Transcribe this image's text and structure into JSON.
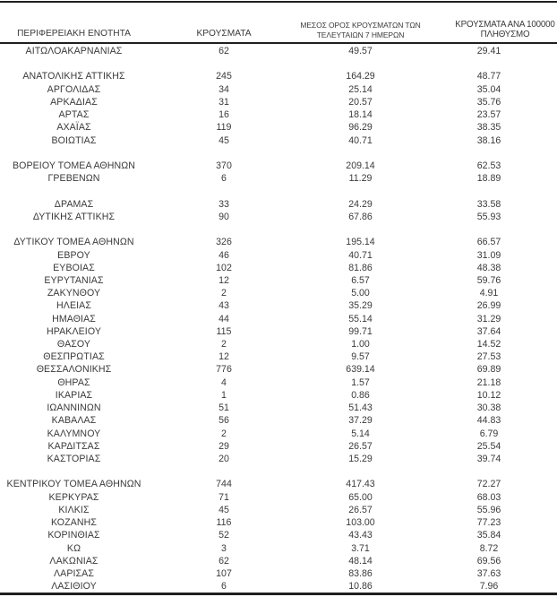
{
  "table": {
    "header": {
      "col1": "ΠΕΡΙΦΕΡΕΙΑΚΗ ΕΝΟΤΗΤΑ",
      "col2": "ΚΡΟΥΣΜΑΤΑ",
      "col3_line1": "ΜΕΣΟΣ ΟΡΟΣ ΚΡΟΥΣΜΑΤΩΝ ΤΩΝ",
      "col3_line2": "ΤΕΛΕΥΤΑΙΩΝ 7 ΗΜΕΡΩΝ",
      "col4_line1": "ΚΡΟΥΣΜΑΤΑ ΑΝΑ 100000",
      "col4_line2": "ΠΛΗΘΥΣΜΟ"
    },
    "rows": [
      {
        "region": "ΑΙΤΩΛΟΑΚΑΡΝΑΝΙΑΣ",
        "cases": "62",
        "avg_7day": "49.57",
        "per_100k": "29.41"
      },
      null,
      {
        "region": "ΑΝΑΤΟΛΙΚΗΣ ΑΤΤΙΚΗΣ",
        "cases": "245",
        "avg_7day": "164.29",
        "per_100k": "48.77"
      },
      {
        "region": "ΑΡΓΟΛΙΔΑΣ",
        "cases": "34",
        "avg_7day": "25.14",
        "per_100k": "35.04"
      },
      {
        "region": "ΑΡΚΑΔΙΑΣ",
        "cases": "31",
        "avg_7day": "20.57",
        "per_100k": "35.76"
      },
      {
        "region": "ΑΡΤΑΣ",
        "cases": "16",
        "avg_7day": "18.14",
        "per_100k": "23.57"
      },
      {
        "region": "ΑΧΑΪΑΣ",
        "cases": "119",
        "avg_7day": "96.29",
        "per_100k": "38.35"
      },
      {
        "region": "ΒΟΙΩΤΙΑΣ",
        "cases": "45",
        "avg_7day": "40.71",
        "per_100k": "38.16"
      },
      null,
      {
        "region": "ΒΟΡΕΙΟΥ ΤΟΜΕΑ ΑΘΗΝΩΝ",
        "cases": "370",
        "avg_7day": "209.14",
        "per_100k": "62.53"
      },
      {
        "region": "ΓΡΕΒΕΝΩΝ",
        "cases": "6",
        "avg_7day": "11.29",
        "per_100k": "18.89"
      },
      null,
      {
        "region": "ΔΡΑΜΑΣ",
        "cases": "33",
        "avg_7day": "24.29",
        "per_100k": "33.58"
      },
      {
        "region": "ΔΥΤΙΚΗΣ ΑΤΤΙΚΗΣ",
        "cases": "90",
        "avg_7day": "67.86",
        "per_100k": "55.93"
      },
      null,
      {
        "region": "ΔΥΤΙΚΟΥ ΤΟΜΕΑ ΑΘΗΝΩΝ",
        "cases": "326",
        "avg_7day": "195.14",
        "per_100k": "66.57"
      },
      {
        "region": "ΕΒΡΟΥ",
        "cases": "46",
        "avg_7day": "40.71",
        "per_100k": "31.09"
      },
      {
        "region": "ΕΥΒΟΙΑΣ",
        "cases": "102",
        "avg_7day": "81.86",
        "per_100k": "48.38"
      },
      {
        "region": "ΕΥΡΥΤΑΝΙΑΣ",
        "cases": "12",
        "avg_7day": "6.57",
        "per_100k": "59.76"
      },
      {
        "region": "ΖΑΚΥΝΘΟΥ",
        "cases": "2",
        "avg_7day": "5.00",
        "per_100k": "4.91"
      },
      {
        "region": "ΗΛΕΙΑΣ",
        "cases": "43",
        "avg_7day": "35.29",
        "per_100k": "26.99"
      },
      {
        "region": "ΗΜΑΘΙΑΣ",
        "cases": "44",
        "avg_7day": "55.14",
        "per_100k": "31.29"
      },
      {
        "region": "ΗΡΑΚΛΕΙΟΥ",
        "cases": "115",
        "avg_7day": "99.71",
        "per_100k": "37.64"
      },
      {
        "region": "ΘΑΣΟΥ",
        "cases": "2",
        "avg_7day": "1.00",
        "per_100k": "14.52"
      },
      {
        "region": "ΘΕΣΠΡΩΤΙΑΣ",
        "cases": "12",
        "avg_7day": "9.57",
        "per_100k": "27.53"
      },
      {
        "region": "ΘΕΣΣΑΛΟΝΙΚΗΣ",
        "cases": "776",
        "avg_7day": "639.14",
        "per_100k": "69.89"
      },
      {
        "region": "ΘΗΡΑΣ",
        "cases": "4",
        "avg_7day": "1.57",
        "per_100k": "21.18"
      },
      {
        "region": "ΙΚΑΡΙΑΣ",
        "cases": "1",
        "avg_7day": "0.86",
        "per_100k": "10.12"
      },
      {
        "region": "ΙΩΑΝΝΙΝΩΝ",
        "cases": "51",
        "avg_7day": "51.43",
        "per_100k": "30.38"
      },
      {
        "region": "ΚΑΒΑΛΑΣ",
        "cases": "56",
        "avg_7day": "37.29",
        "per_100k": "44.83"
      },
      {
        "region": "ΚΑΛΥΜΝΟΥ",
        "cases": "2",
        "avg_7day": "5.14",
        "per_100k": "6.79"
      },
      {
        "region": "ΚΑΡΔΙΤΣΑΣ",
        "cases": "29",
        "avg_7day": "26.57",
        "per_100k": "25.54"
      },
      {
        "region": "ΚΑΣΤΟΡΙΑΣ",
        "cases": "20",
        "avg_7day": "15.29",
        "per_100k": "39.74"
      },
      null,
      {
        "region": "ΚΕΝΤΡΙΚΟΥ ΤΟΜΕΑ ΑΘΗΝΩΝ",
        "cases": "744",
        "avg_7day": "417.43",
        "per_100k": "72.27"
      },
      {
        "region": "ΚΕΡΚΥΡΑΣ",
        "cases": "71",
        "avg_7day": "65.00",
        "per_100k": "68.03"
      },
      {
        "region": "ΚΙΛΚΙΣ",
        "cases": "45",
        "avg_7day": "26.57",
        "per_100k": "55.96"
      },
      {
        "region": "ΚΟΖΑΝΗΣ",
        "cases": "116",
        "avg_7day": "103.00",
        "per_100k": "77.23"
      },
      {
        "region": "ΚΟΡΙΝΘΙΑΣ",
        "cases": "52",
        "avg_7day": "43.43",
        "per_100k": "35.84"
      },
      {
        "region": "ΚΩ",
        "cases": "3",
        "avg_7day": "3.71",
        "per_100k": "8.72"
      },
      {
        "region": "ΛΑΚΩΝΙΑΣ",
        "cases": "62",
        "avg_7day": "48.14",
        "per_100k": "69.56"
      },
      {
        "region": "ΛΑΡΙΣΑΣ",
        "cases": "107",
        "avg_7day": "83.86",
        "per_100k": "37.63"
      },
      {
        "region": "ΛΑΣΙΘΙΟΥ",
        "cases": "6",
        "avg_7day": "10.86",
        "per_100k": "7.96"
      }
    ]
  },
  "colors": {
    "text": "#3a3a3a",
    "rule": "#1f1f1f",
    "background": "#ffffff"
  }
}
